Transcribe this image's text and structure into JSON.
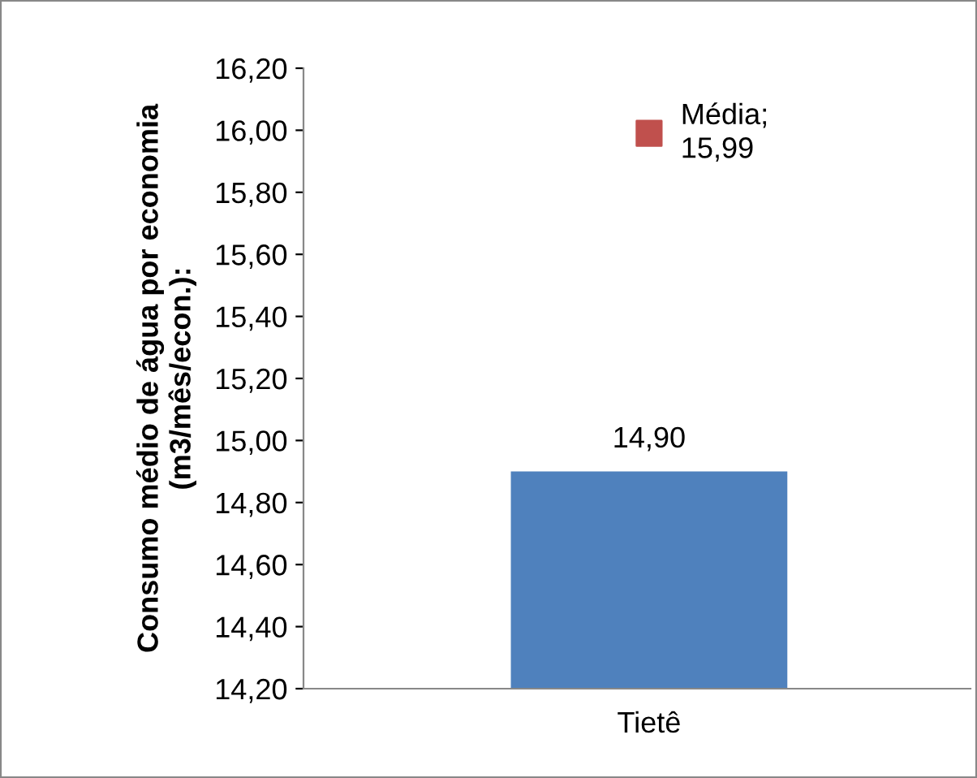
{
  "chart_data": {
    "type": "bar",
    "ylabel": "Consumo médio de água por economia (m3/mês/econ.):",
    "categories": [
      "Tietê"
    ],
    "series": [
      {
        "color": "#4f81bd",
        "values": [
          14.9
        ],
        "value_labels": [
          "14,90"
        ]
      },
      {
        "type": "scatter",
        "color": "#c0504d",
        "values": [
          15.99
        ],
        "value_labels": [
          "Média;\n15,99"
        ],
        "marker": "square"
      }
    ],
    "ylim": [
      14.2,
      16.2
    ],
    "yticks": [
      {
        "value": 14.2,
        "label": "14,20"
      },
      {
        "value": 14.4,
        "label": "14,40"
      },
      {
        "value": 14.6,
        "label": "14,60"
      },
      {
        "value": 14.8,
        "label": "14,80"
      },
      {
        "value": 15.0,
        "label": "15,00"
      },
      {
        "value": 15.2,
        "label": "15,20"
      },
      {
        "value": 15.4,
        "label": "15,40"
      },
      {
        "value": 15.6,
        "label": "15,60"
      },
      {
        "value": 15.8,
        "label": "15,80"
      },
      {
        "value": 16.0,
        "label": "16,00"
      },
      {
        "value": 16.2,
        "label": "16,20"
      }
    ],
    "grid": false,
    "legend": false
  }
}
